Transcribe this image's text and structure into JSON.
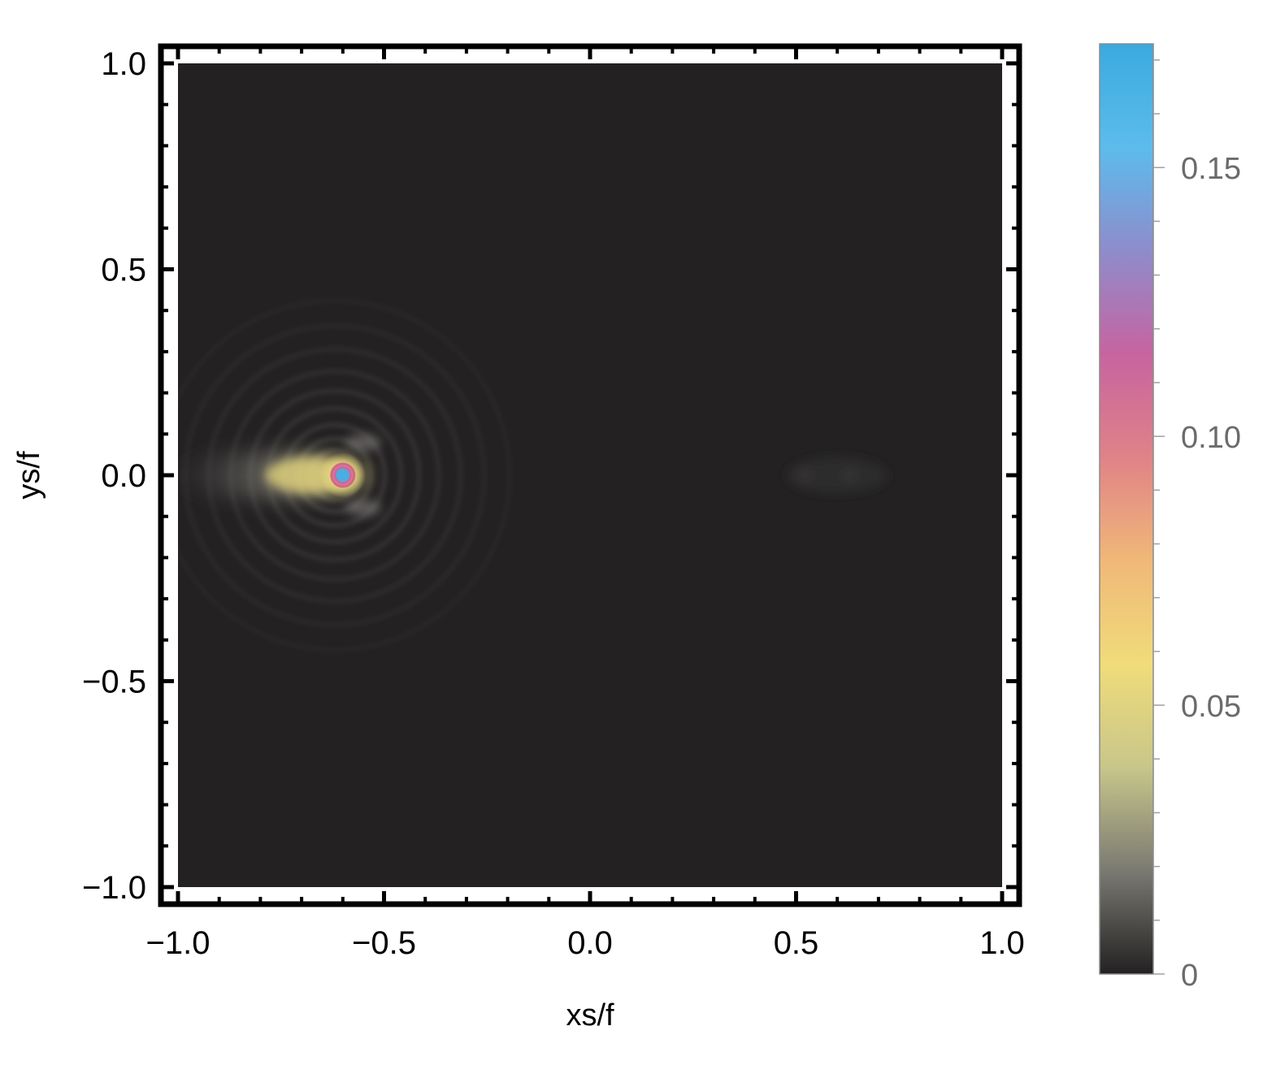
{
  "chart_data": {
    "type": "heatmap",
    "title": "",
    "xlabel": "xs/f",
    "ylabel": "ys/f",
    "xlim": [
      -1.0,
      1.0
    ],
    "ylim": [
      -1.0,
      1.0
    ],
    "x_ticks": [
      -1.0,
      -0.5,
      0.0,
      0.5,
      1.0
    ],
    "x_tick_labels": [
      "−1.0",
      "−0.5",
      "0.0",
      "0.5",
      "1.0"
    ],
    "y_ticks": [
      1.0,
      0.5,
      0.0,
      -0.5,
      -1.0
    ],
    "y_tick_labels": [
      "1.0",
      "0.5",
      "0.0",
      "−0.5",
      "−1.0"
    ],
    "colorbar": {
      "range": [
        0,
        0.173
      ],
      "ticks": [
        0,
        0.05,
        0.1,
        0.15
      ],
      "tick_labels": [
        "0",
        "0.05",
        "0.10",
        "0.15"
      ],
      "colors": [
        "#232122",
        "#7a7a72",
        "#c8c68a",
        "#f0dc7a",
        "#f0b878",
        "#e08288",
        "#c664a0",
        "#8e8ccc",
        "#5cbcec",
        "#3aaade"
      ]
    },
    "background_value": 0.0,
    "peak": {
      "x": -0.6,
      "y": 0.0,
      "value": 0.173
    },
    "secondary_feature": {
      "x": 0.6,
      "y": 0.0,
      "value": 0.002
    },
    "grid": false
  }
}
